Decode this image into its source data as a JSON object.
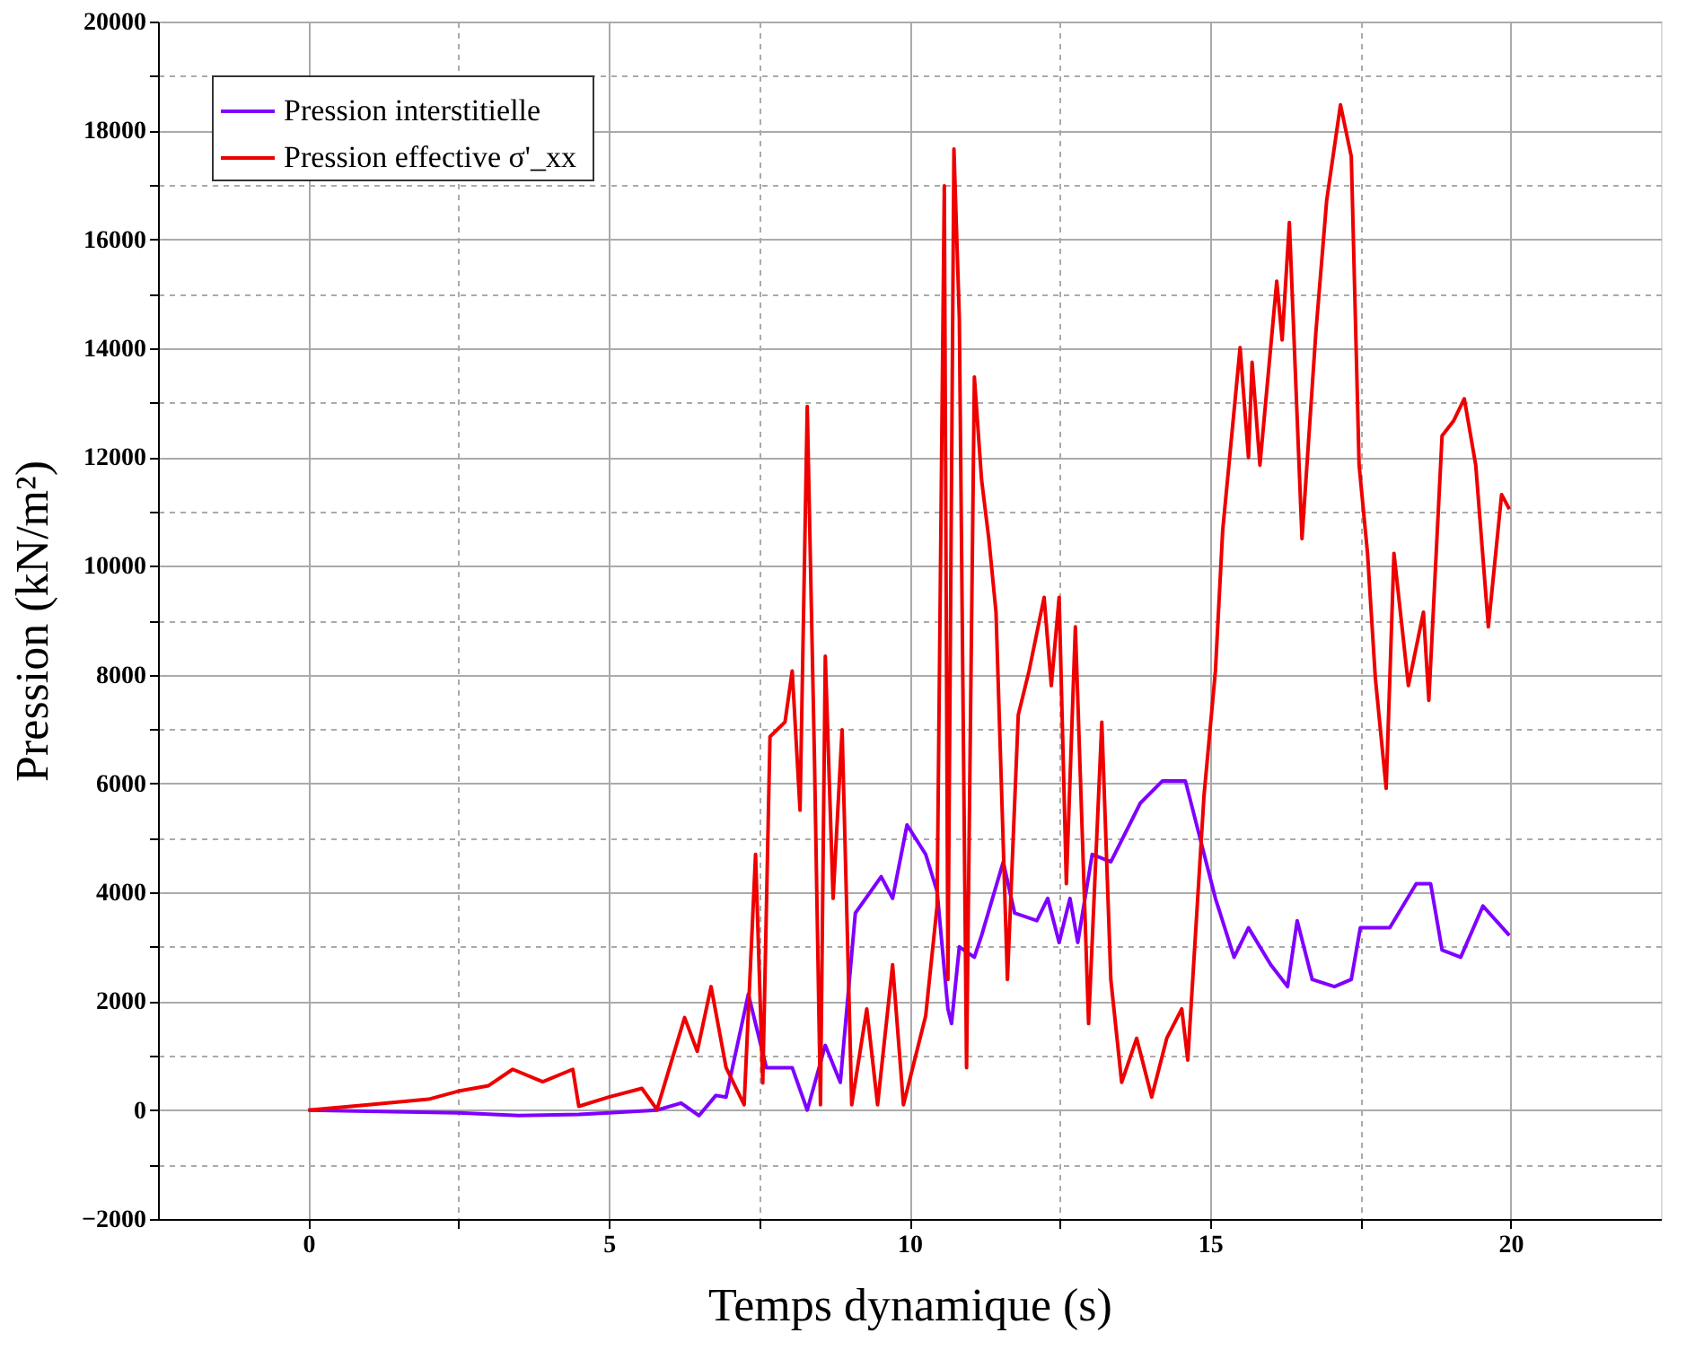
{
  "chart_data": {
    "type": "line",
    "xlabel": "Temps dynamique (s)",
    "ylabel": "Pression (kN/m²)",
    "xlim": [
      -2.5,
      22.5
    ],
    "ylim": [
      -2000,
      20000
    ],
    "xticks": [
      0,
      {
        "value": 2.5,
        "label": null
      },
      5,
      {
        "value": 7.5,
        "label": null
      },
      10,
      {
        "value": 12.5,
        "label": null
      },
      15,
      {
        "value": 17.5,
        "label": null
      },
      20
    ],
    "yticks": [
      -2000,
      {
        "value": -1000,
        "label": null
      },
      0,
      {
        "value": 1000,
        "label": null
      },
      2000,
      {
        "value": 3000,
        "label": null
      },
      4000,
      {
        "value": 5000,
        "label": null
      },
      6000,
      {
        "value": 7000,
        "label": null
      },
      8000,
      {
        "value": 9000,
        "label": null
      },
      10000,
      {
        "value": 11000,
        "label": null
      },
      12000,
      {
        "value": 13000,
        "label": null
      },
      14000,
      {
        "value": 15000,
        "label": null
      },
      16000,
      {
        "value": 17000,
        "label": null
      },
      18000,
      {
        "value": 19000,
        "label": null
      },
      20000
    ],
    "grid": true,
    "legend": "top left",
    "line_style": "solid",
    "marker": "none",
    "series": [
      {
        "name": "Pression interstitielle",
        "color": "#7f00ff",
        "x": [
          0,
          1,
          2.5,
          3.5,
          4.5,
          5,
          5.8,
          6.2,
          6.5,
          6.78,
          6.95,
          7.32,
          7.62,
          8.05,
          8.3,
          8.6,
          8.85,
          9.1,
          9.53,
          9.72,
          9.96,
          10.27,
          10.46,
          10.64,
          10.7,
          10.83,
          11.08,
          11.2,
          11.56,
          11.75,
          12.12,
          12.3,
          12.49,
          12.67,
          12.8,
          13.04,
          13.35,
          13.84,
          14.21,
          14.59,
          15.09,
          15.4,
          15.64,
          16.01,
          16.29,
          16.45,
          16.7,
          17.07,
          17.35,
          17.5,
          17.99,
          18.43,
          18.67,
          18.86,
          19.17,
          19.54,
          19.98
        ],
        "values": [
          0,
          -20,
          -50,
          -100,
          -80,
          -50,
          0,
          130,
          -100,
          270,
          240,
          2130,
          780,
          780,
          0,
          1190,
          510,
          3620,
          4290,
          3890,
          5240,
          4700,
          4020,
          1860,
          1590,
          3000,
          2810,
          3210,
          4560,
          3620,
          3480,
          3890,
          3080,
          3890,
          3080,
          4700,
          4560,
          5640,
          6050,
          6050,
          3890,
          2810,
          3350,
          2670,
          2270,
          3480,
          2400,
          2270,
          2400,
          3350,
          3350,
          4160,
          4160,
          2940,
          2810,
          3750,
          3210
        ]
      },
      {
        "name": "Pression effective  σ'_xx",
        "color": "#ee0000",
        "x": [
          0,
          1,
          2,
          2.5,
          3,
          3.4,
          3.9,
          4.4,
          4.5,
          5,
          5.55,
          5.8,
          6.26,
          6.47,
          6.7,
          6.95,
          7.25,
          7.44,
          7.56,
          7.68,
          7.93,
          8.05,
          8.18,
          8.3,
          8.42,
          8.52,
          8.6,
          8.73,
          8.88,
          9.04,
          9.29,
          9.47,
          9.72,
          9.9,
          10.27,
          10.46,
          10.58,
          10.64,
          10.74,
          10.83,
          10.95,
          11.08,
          11.2,
          11.32,
          11.44,
          11.63,
          11.81,
          11.99,
          12.24,
          12.36,
          12.49,
          12.61,
          12.76,
          12.98,
          13.2,
          13.35,
          13.53,
          13.78,
          14.03,
          14.28,
          14.53,
          14.63,
          14.9,
          15.09,
          15.21,
          15.5,
          15.64,
          15.7,
          15.83,
          16.11,
          16.2,
          16.32,
          16.53,
          16.76,
          16.94,
          17.17,
          17.35,
          17.48,
          17.62,
          17.75,
          17.93,
          18.06,
          18.3,
          18.55,
          18.64,
          18.86,
          19.05,
          19.23,
          19.42,
          19.63,
          19.85,
          19.98
        ],
        "values": [
          0,
          100,
          200,
          350,
          450,
          750,
          520,
          750,
          70,
          240,
          400,
          10,
          1700,
          1080,
          2270,
          780,
          100,
          4700,
          500,
          6860,
          7130,
          8070,
          5510,
          12930,
          6450,
          100,
          8340,
          3890,
          6990,
          100,
          1860,
          100,
          2670,
          100,
          1730,
          3750,
          16980,
          2400,
          17660,
          14550,
          780,
          13470,
          11580,
          10500,
          9150,
          2400,
          7260,
          8070,
          9420,
          7800,
          9420,
          4160,
          8880,
          1590,
          7130,
          2400,
          510,
          1320,
          240,
          1320,
          1860,
          920,
          5780,
          8070,
          10640,
          14010,
          11990,
          13740,
          11850,
          15230,
          14150,
          16310,
          10500,
          14280,
          16710,
          18470,
          17520,
          11850,
          10230,
          7940,
          5910,
          10230,
          7800,
          9150,
          7530,
          12390,
          12660,
          13070,
          11850,
          8880,
          11310,
          11040
        ]
      }
    ]
  }
}
